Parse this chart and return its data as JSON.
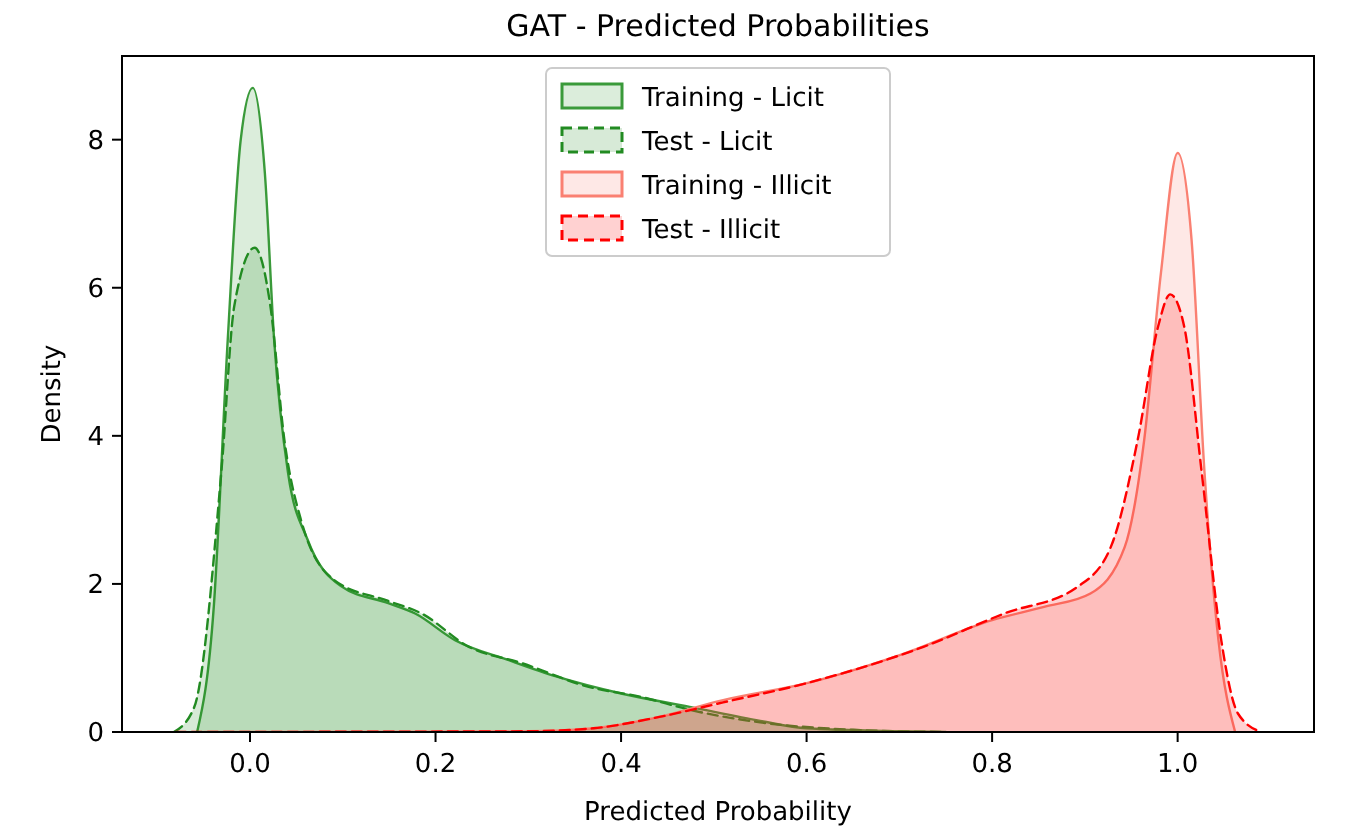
{
  "chart_data": {
    "type": "area",
    "title": "GAT - Predicted Probabilities",
    "xlabel": "Predicted Probability",
    "ylabel": "Density",
    "xlim": [
      -0.138,
      1.147
    ],
    "ylim": [
      0,
      9.13
    ],
    "xticks": [
      {
        "value": 0,
        "label": "0.0"
      },
      {
        "value": 0.2,
        "label": "0.2"
      },
      {
        "value": 0.4,
        "label": "0.4"
      },
      {
        "value": 0.6,
        "label": "0.6"
      },
      {
        "value": 0.8,
        "label": "0.8"
      },
      {
        "value": 1,
        "label": "1.0"
      }
    ],
    "yticks": [
      0,
      2,
      4,
      6,
      8
    ],
    "legend": "top",
    "grid": false,
    "series": [
      {
        "name": "Training - Licit",
        "color": "#3a9a3a",
        "line_style": "solid",
        "x": [
          -0.057,
          -0.039,
          -0.024,
          -0.01,
          0.003,
          0.016,
          0.026,
          0.041,
          0.062,
          0.098,
          0.149,
          0.178,
          0.221,
          0.279,
          0.33,
          0.4,
          0.474,
          0.55,
          0.6,
          0.7,
          0.75
        ],
        "values": [
          0,
          1.7,
          5.3,
          8.0,
          8.7,
          7.55,
          5.3,
          3.5,
          2.6,
          1.97,
          1.74,
          1.6,
          1.24,
          0.97,
          0.75,
          0.52,
          0.34,
          0.15,
          0.05,
          0.01,
          0
        ]
      },
      {
        "name": "Test - Licit",
        "color": "#228b22",
        "line_style": "dashed",
        "x": [
          -0.082,
          -0.06,
          -0.031,
          -0.017,
          0.005,
          0.022,
          0.037,
          0.055,
          0.091,
          0.149,
          0.185,
          0.236,
          0.293,
          0.365,
          0.423,
          0.474,
          0.55,
          0.65,
          0.75
        ],
        "values": [
          0,
          0.34,
          3.5,
          5.75,
          6.54,
          5.75,
          3.95,
          2.86,
          2.05,
          1.77,
          1.6,
          1.15,
          0.93,
          0.61,
          0.47,
          0.3,
          0.13,
          0.03,
          0
        ]
      },
      {
        "name": "Training - Illicit",
        "color": "#fa8072",
        "line_style": "solid",
        "x": [
          -0.05,
          0.3,
          0.37,
          0.44,
          0.51,
          0.6,
          0.705,
          0.8,
          0.856,
          0.906,
          0.943,
          0.964,
          0.982,
          1.0,
          1.015,
          1.029,
          1.044,
          1.062
        ],
        "values": [
          0,
          0.01,
          0.05,
          0.2,
          0.43,
          0.66,
          1.06,
          1.51,
          1.69,
          1.87,
          2.5,
          3.95,
          6.2,
          7.82,
          6.65,
          3.5,
          1.24,
          0
        ]
      },
      {
        "name": "Test - Illicit",
        "color": "#ff0000",
        "line_style": "dashed",
        "x": [
          -0.08,
          0.3,
          0.37,
          0.44,
          0.51,
          0.6,
          0.726,
          0.813,
          0.892,
          0.928,
          0.957,
          0.979,
          0.992,
          1.007,
          1.026,
          1.047,
          1.065,
          1.09
        ],
        "values": [
          0,
          0.01,
          0.05,
          0.2,
          0.4,
          0.66,
          1.15,
          1.6,
          1.96,
          2.5,
          3.95,
          5.48,
          5.91,
          5.48,
          3.5,
          1.24,
          0.25,
          0
        ]
      }
    ]
  }
}
